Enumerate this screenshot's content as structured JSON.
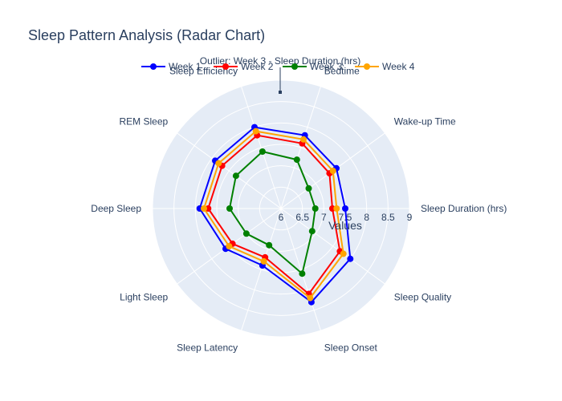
{
  "chart_data": {
    "type": "radar",
    "title": "Sleep Pattern Analysis (Radar Chart)",
    "radial_axis_title": "Values",
    "radial_range": [
      6,
      9
    ],
    "radial_ticks": [
      "6",
      "6.5",
      "7",
      "7.5",
      "8",
      "8.5",
      "9"
    ],
    "categories": [
      "Sleep Duration (hrs)",
      "Wake-up Time",
      "Bedtime",
      "Sleep Efficiency",
      "REM Sleep",
      "Deep Sleep",
      "Light Sleep",
      "Sleep Latency",
      "Sleep Onset",
      "Sleep Quality"
    ],
    "series": [
      {
        "name": "Week 1",
        "color": "#0000ff",
        "values": [
          7.5,
          7.6,
          7.8,
          8.0,
          7.9,
          7.9,
          7.6,
          7.4,
          8.3,
          8.0
        ]
      },
      {
        "name": "Week 2",
        "color": "#ff0000",
        "values": [
          7.2,
          7.4,
          7.6,
          7.8,
          7.7,
          7.7,
          7.4,
          7.2,
          8.1,
          7.7
        ]
      },
      {
        "name": "Week 3",
        "color": "#008000",
        "values": [
          6.8,
          6.8,
          7.2,
          7.4,
          7.3,
          7.2,
          7.0,
          6.9,
          7.6,
          6.9
        ]
      },
      {
        "name": "Week 4",
        "color": "#ffa500",
        "values": [
          7.3,
          7.5,
          7.7,
          7.9,
          7.8,
          7.8,
          7.5,
          7.3,
          8.2,
          7.8
        ]
      }
    ],
    "annotation": {
      "text": "Outlier: Week 3 - Sleep Duration (hrs)"
    },
    "legend_position": "top",
    "grid": true
  }
}
